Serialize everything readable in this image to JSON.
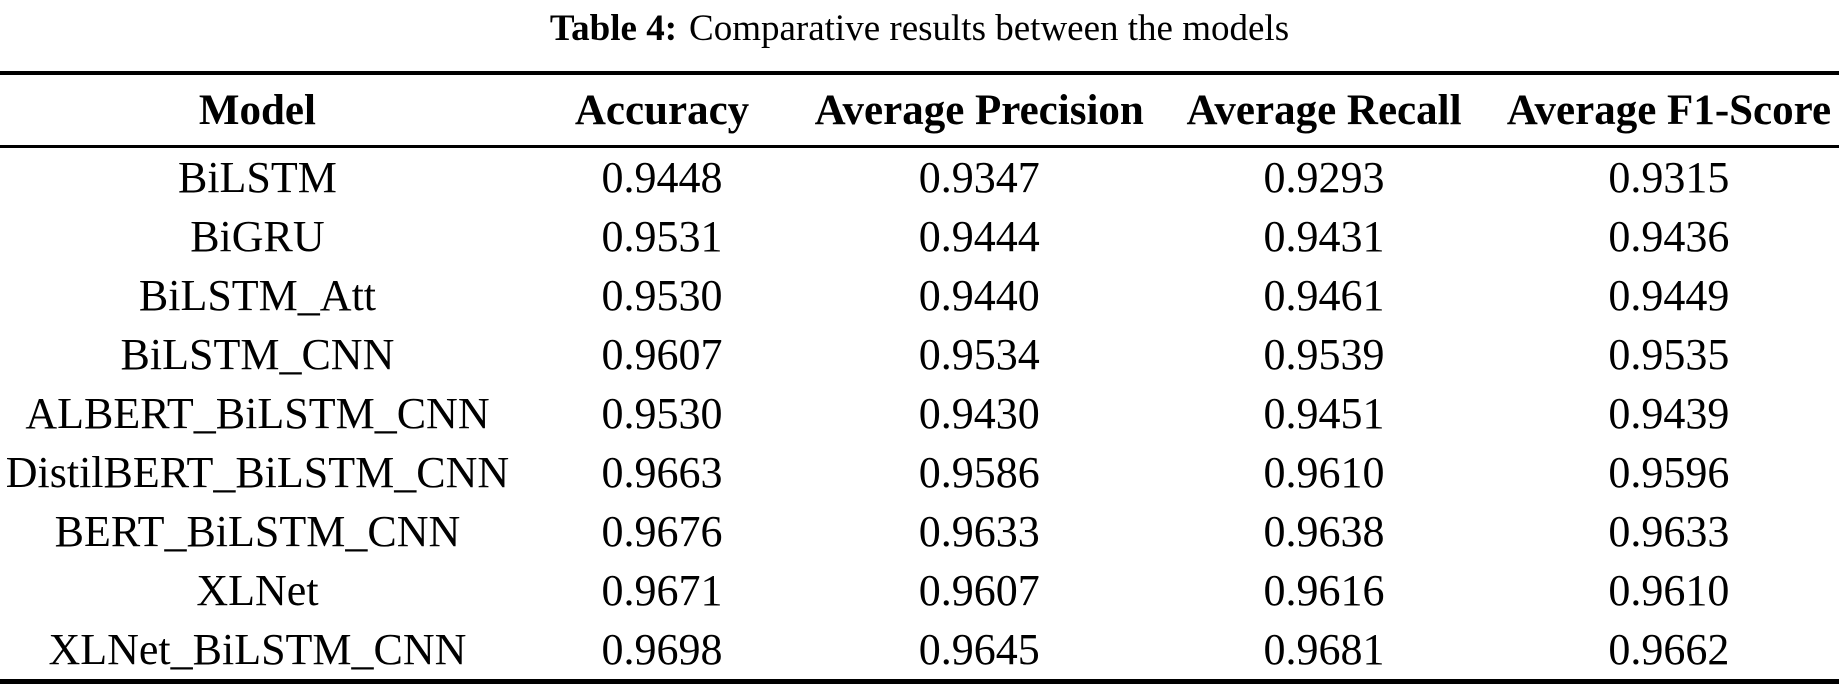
{
  "caption": {
    "label": "Table 4:",
    "text": "Comparative results between the models"
  },
  "table": {
    "columns": [
      "Model",
      "Accuracy",
      "Average Precision",
      "Average Recall",
      "Average F1-Score"
    ],
    "rows": [
      [
        "BiLSTM",
        "0.9448",
        "0.9347",
        "0.9293",
        "0.9315"
      ],
      [
        "BiGRU",
        "0.9531",
        "0.9444",
        "0.9431",
        "0.9436"
      ],
      [
        "BiLSTM_Att",
        "0.9530",
        "0.9440",
        "0.9461",
        "0.9449"
      ],
      [
        "BiLSTM_CNN",
        "0.9607",
        "0.9534",
        "0.9539",
        "0.9535"
      ],
      [
        "ALBERT_BiLSTM_CNN",
        "0.9530",
        "0.9430",
        "0.9451",
        "0.9439"
      ],
      [
        "DistilBERT_BiLSTM_CNN",
        "0.9663",
        "0.9586",
        "0.9610",
        "0.9596"
      ],
      [
        "BERT_BiLSTM_CNN",
        "0.9676",
        "0.9633",
        "0.9638",
        "0.9633"
      ],
      [
        "XLNet",
        "0.9671",
        "0.9607",
        "0.9616",
        "0.9610"
      ],
      [
        "XLNet_BiLSTM_CNN",
        "0.9698",
        "0.9645",
        "0.9681",
        "0.9662"
      ]
    ]
  },
  "colors": {
    "text": "#000000",
    "background": "#ffffff",
    "rule": "#000000"
  },
  "chart_data": {
    "type": "table",
    "title": "Table 4: Comparative results between the models",
    "columns": [
      "Model",
      "Accuracy",
      "Average Precision",
      "Average Recall",
      "Average F1-Score"
    ],
    "rows": [
      [
        "BiLSTM",
        0.9448,
        0.9347,
        0.9293,
        0.9315
      ],
      [
        "BiGRU",
        0.9531,
        0.9444,
        0.9431,
        0.9436
      ],
      [
        "BiLSTM_Att",
        0.953,
        0.944,
        0.9461,
        0.9449
      ],
      [
        "BiLSTM_CNN",
        0.9607,
        0.9534,
        0.9539,
        0.9535
      ],
      [
        "ALBERT_BiLSTM_CNN",
        0.953,
        0.943,
        0.9451,
        0.9439
      ],
      [
        "DistilBERT_BiLSTM_CNN",
        0.9663,
        0.9586,
        0.961,
        0.9596
      ],
      [
        "BERT_BiLSTM_CNN",
        0.9676,
        0.9633,
        0.9638,
        0.9633
      ],
      [
        "XLNet",
        0.9671,
        0.9607,
        0.9616,
        0.961
      ],
      [
        "XLNet_BiLSTM_CNN",
        0.9698,
        0.9645,
        0.9681,
        0.9662
      ]
    ],
    "layout": {
      "rules": [
        "top-thick",
        "below-header-thin",
        "bottom-thick"
      ],
      "alignment": "center"
    }
  }
}
